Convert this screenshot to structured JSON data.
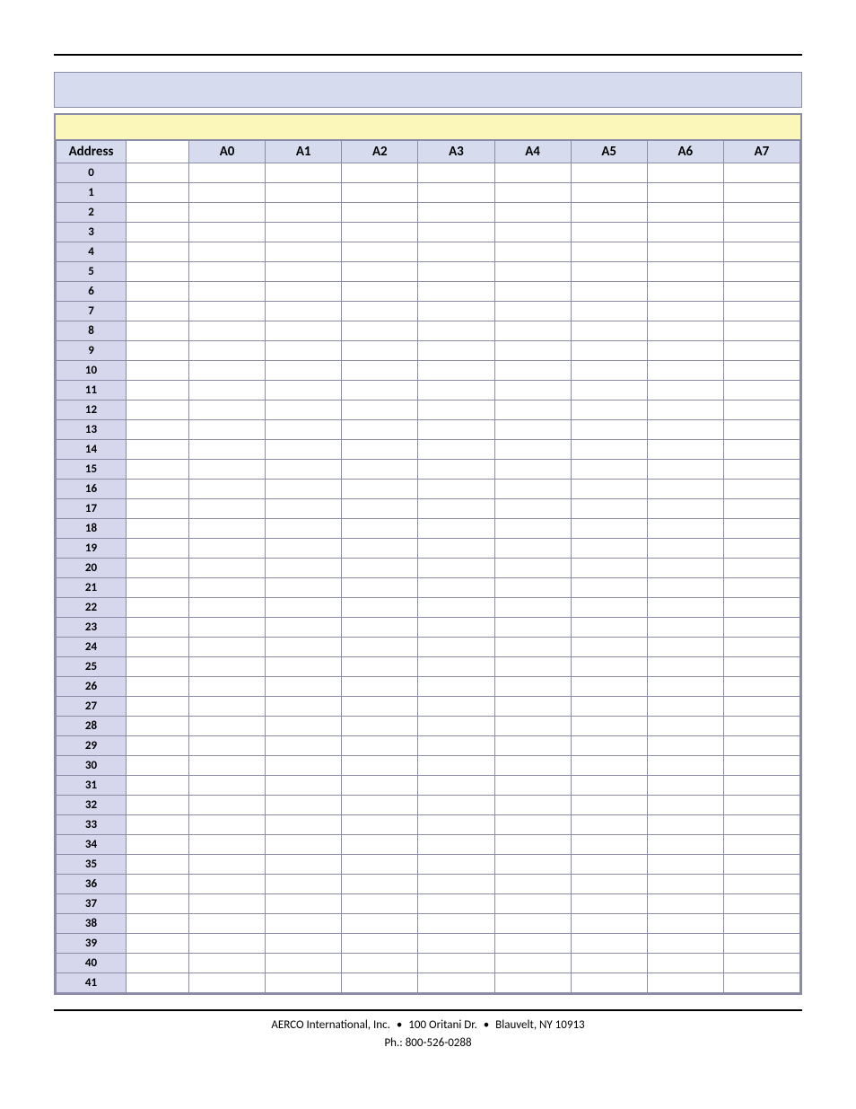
{
  "table": {
    "headers": [
      "Address",
      "",
      "A0",
      "A1",
      "A2",
      "A3",
      "A4",
      "A5",
      "A6",
      "A7"
    ],
    "address_header": "Address",
    "col_headers": [
      "A0",
      "A1",
      "A2",
      "A3",
      "A4",
      "A5",
      "A6",
      "A7"
    ],
    "row_count": 42,
    "addr_bg": "#d6d6ed",
    "header_bg": "#d6dced",
    "yellow_bg": "#fbf6b9",
    "border_color": "#8a8ca8"
  },
  "footer": {
    "line1_a": "AERCO International, Inc.",
    "line1_b": "100 Oritani Dr.",
    "line1_c": "Blauvelt, NY 10913",
    "line2": "Ph.: 800-526-0288",
    "bullet": "•"
  }
}
